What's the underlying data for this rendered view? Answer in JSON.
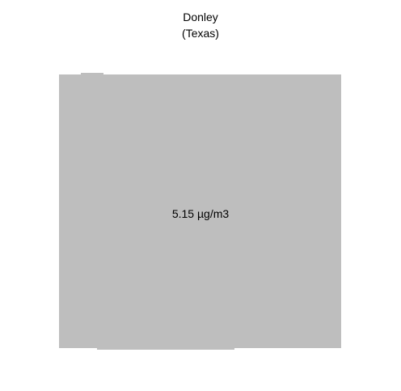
{
  "title": {
    "county": "Donley",
    "state": "(Texas)"
  },
  "region": {
    "value_label": "5.15 µg/m3",
    "fill_color": "#bebebe"
  }
}
